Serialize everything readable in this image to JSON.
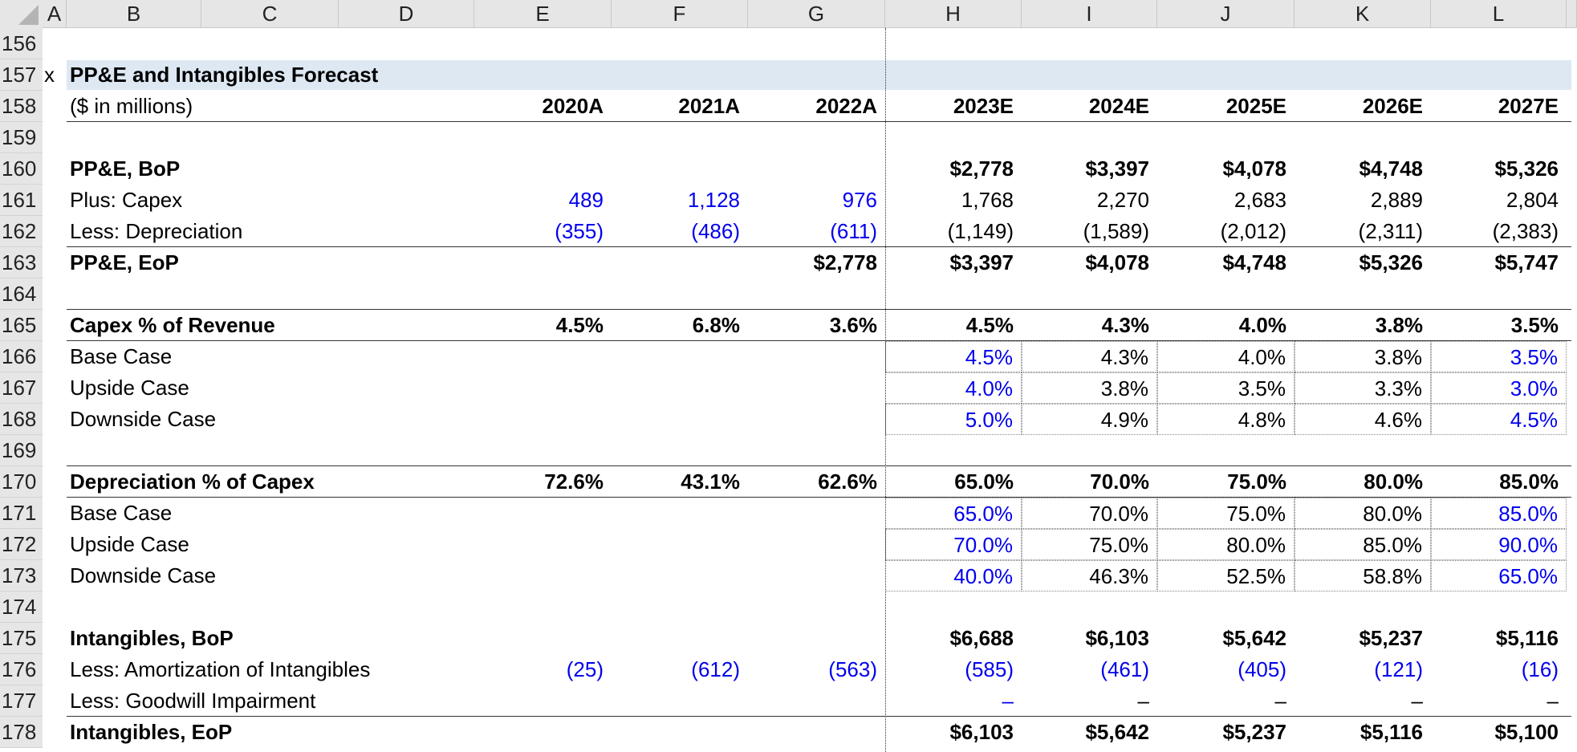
{
  "column_headers": [
    "A",
    "B",
    "C",
    "D",
    "E",
    "F",
    "G",
    "H",
    "I",
    "J",
    "K",
    "L"
  ],
  "rows": [
    {
      "number": "156"
    },
    {
      "number": "157",
      "marker": "x",
      "label": "PP&E and Intangibles Forecast"
    },
    {
      "number": "158",
      "label": "($ in millions)",
      "cells": [
        "2020A",
        "2021A",
        "2022A",
        "2023E",
        "2024E",
        "2025E",
        "2026E",
        "2027E"
      ]
    },
    {
      "number": "159"
    },
    {
      "number": "160",
      "label": "PP&E, BoP",
      "cells": [
        null,
        null,
        null,
        "$2,778",
        "$3,397",
        "$4,078",
        "$4,748",
        "$5,326"
      ]
    },
    {
      "number": "161",
      "label": "Plus: Capex",
      "cells": [
        "489",
        "1,128",
        "976",
        "1,768",
        "2,270",
        "2,683",
        "2,889",
        "2,804"
      ]
    },
    {
      "number": "162",
      "label": "Less: Depreciation",
      "cells": [
        "(355)",
        "(486)",
        "(611)",
        "(1,149)",
        "(1,589)",
        "(2,012)",
        "(2,311)",
        "(2,383)"
      ]
    },
    {
      "number": "163",
      "label": "PP&E, EoP",
      "cells": [
        null,
        null,
        "$2,778",
        "$3,397",
        "$4,078",
        "$4,748",
        "$5,326",
        "$5,747"
      ]
    },
    {
      "number": "164"
    },
    {
      "number": "165",
      "label": "Capex % of Revenue",
      "cells": [
        "4.5%",
        "6.8%",
        "3.6%",
        "4.5%",
        "4.3%",
        "4.0%",
        "3.8%",
        "3.5%"
      ]
    },
    {
      "number": "166",
      "label": "Base Case",
      "cells": [
        null,
        null,
        null,
        "4.5%",
        "4.3%",
        "4.0%",
        "3.8%",
        "3.5%"
      ]
    },
    {
      "number": "167",
      "label": "Upside Case",
      "cells": [
        null,
        null,
        null,
        "4.0%",
        "3.8%",
        "3.5%",
        "3.3%",
        "3.0%"
      ]
    },
    {
      "number": "168",
      "label": "Downside Case",
      "cells": [
        null,
        null,
        null,
        "5.0%",
        "4.9%",
        "4.8%",
        "4.6%",
        "4.5%"
      ]
    },
    {
      "number": "169"
    },
    {
      "number": "170",
      "label": "Depreciation % of Capex",
      "cells": [
        "72.6%",
        "43.1%",
        "62.6%",
        "65.0%",
        "70.0%",
        "75.0%",
        "80.0%",
        "85.0%"
      ]
    },
    {
      "number": "171",
      "label": "Base Case",
      "cells": [
        null,
        null,
        null,
        "65.0%",
        "70.0%",
        "75.0%",
        "80.0%",
        "85.0%"
      ]
    },
    {
      "number": "172",
      "label": "Upside Case",
      "cells": [
        null,
        null,
        null,
        "70.0%",
        "75.0%",
        "80.0%",
        "85.0%",
        "90.0%"
      ]
    },
    {
      "number": "173",
      "label": "Downside Case",
      "cells": [
        null,
        null,
        null,
        "40.0%",
        "46.3%",
        "52.5%",
        "58.8%",
        "65.0%"
      ]
    },
    {
      "number": "174"
    },
    {
      "number": "175",
      "label": "Intangibles, BoP",
      "cells": [
        null,
        null,
        null,
        "$6,688",
        "$6,103",
        "$5,642",
        "$5,237",
        "$5,116"
      ]
    },
    {
      "number": "176",
      "label": "Less: Amortization of Intangibles",
      "cells": [
        "(25)",
        "(612)",
        "(563)",
        "(585)",
        "(461)",
        "(405)",
        "(121)",
        "(16)"
      ]
    },
    {
      "number": "177",
      "label": "Less: Goodwill Impairment",
      "cells": [
        null,
        null,
        null,
        "–",
        "–",
        "–",
        "–",
        "–"
      ]
    },
    {
      "number": "178",
      "label": "Intangibles, EoP",
      "cells": [
        null,
        null,
        null,
        "$6,103",
        "$5,642",
        "$5,237",
        "$5,116",
        "$5,100"
      ]
    }
  ]
}
